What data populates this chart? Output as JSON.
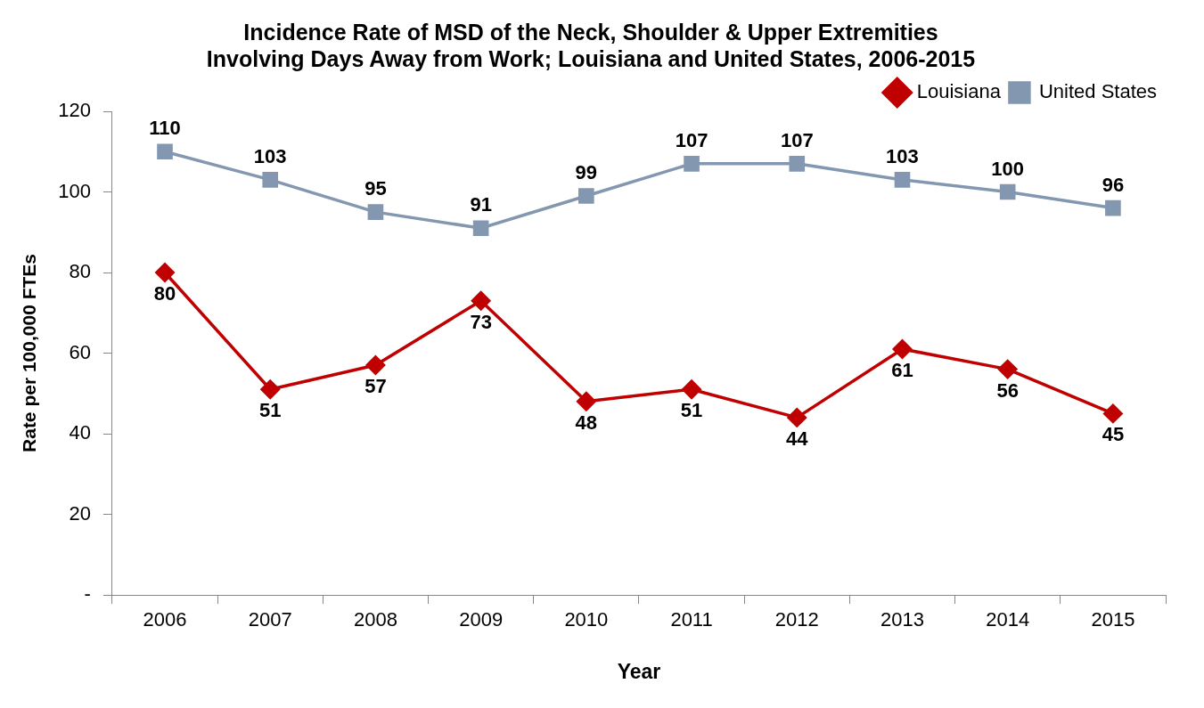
{
  "chart_data": {
    "type": "line",
    "title": "Incidence Rate of MSD of the Neck, Shoulder & Upper Extremities\nInvolving Days Away from Work; Louisiana and United States, 2006-2015",
    "xlabel": "Year",
    "ylabel": "Rate per 100,000 FTEs",
    "categories": [
      "2006",
      "2007",
      "2008",
      "2009",
      "2010",
      "2011",
      "2012",
      "2013",
      "2014",
      "2015"
    ],
    "series": [
      {
        "name": "Louisiana",
        "color": "#c00000",
        "marker": "diamond",
        "values": [
          80,
          51,
          57,
          73,
          48,
          51,
          44,
          61,
          56,
          45
        ]
      },
      {
        "name": "United States",
        "color": "#8497b0",
        "marker": "square",
        "values": [
          110,
          103,
          95,
          91,
          99,
          107,
          107,
          103,
          100,
          96
        ]
      }
    ],
    "ylim": [
      0,
      120
    ],
    "yticks": [
      {
        "value": 0,
        "label": "-"
      },
      20,
      40,
      60,
      80,
      100,
      120
    ],
    "grid": false,
    "legend": "top right",
    "data_labels": true,
    "line_style": "solid"
  }
}
